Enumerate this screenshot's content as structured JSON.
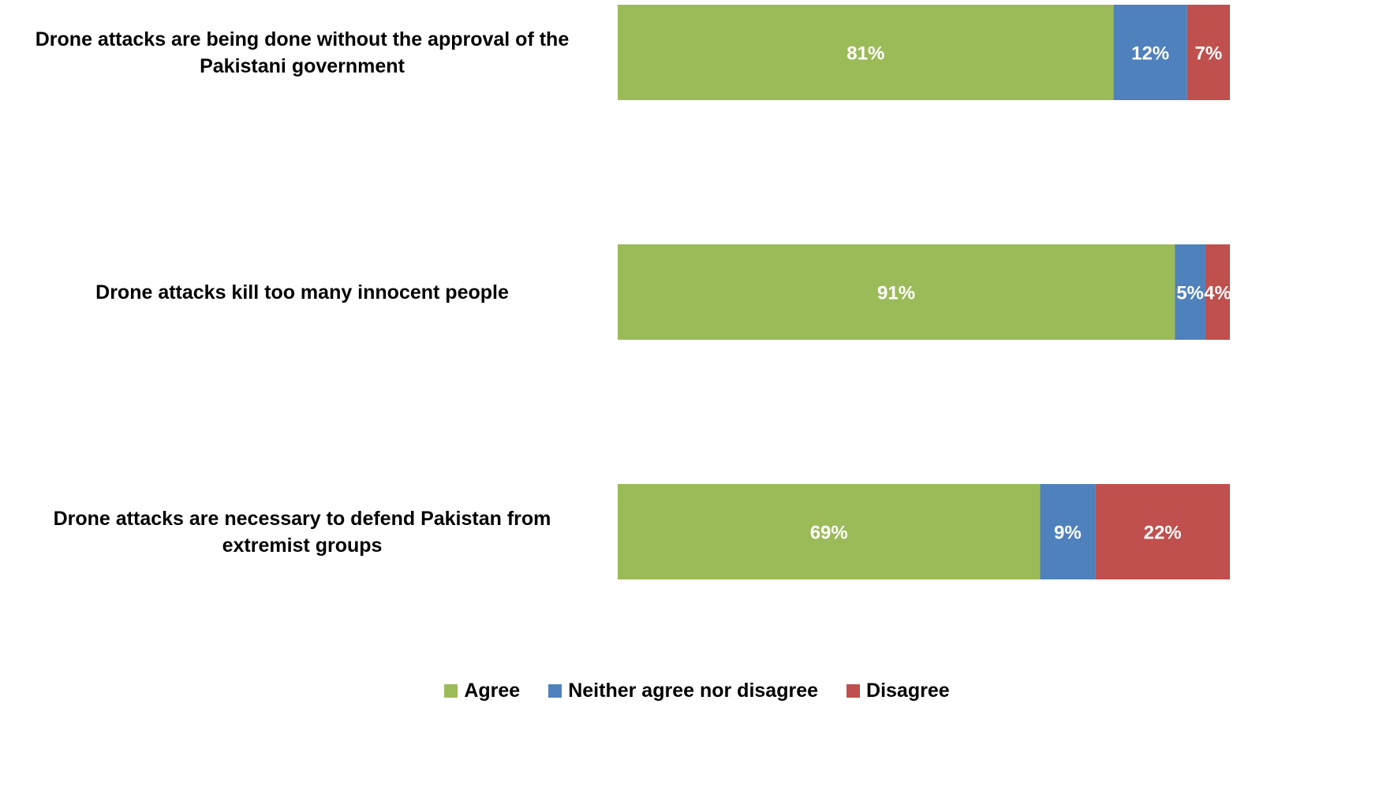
{
  "chart_data": {
    "type": "bar",
    "orientation": "horizontal",
    "stacked": true,
    "percent_stacked": true,
    "categories": [
      "Drone attacks are being done without the approval of the Pakistani government",
      "Drone attacks kill too many innocent people",
      "Drone attacks are necessary to defend Pakistan from extremist groups"
    ],
    "series": [
      {
        "name": "Agree",
        "color": "#9BBB59",
        "values": [
          81,
          91,
          69
        ]
      },
      {
        "name": "Neither agree nor disagree",
        "color": "#4F81BD",
        "values": [
          12,
          5,
          9
        ]
      },
      {
        "name": "Disagree",
        "color": "#C0504D",
        "values": [
          7,
          4,
          22
        ]
      }
    ],
    "data_labels": [
      [
        "81%",
        "91%",
        "69%"
      ],
      [
        "12%",
        "5%",
        "9%"
      ],
      [
        "7%",
        "4%",
        "22%"
      ]
    ],
    "xlim": [
      0,
      100
    ],
    "grid": false,
    "legend_position": "bottom",
    "title": "",
    "xlabel": "",
    "ylabel": ""
  }
}
